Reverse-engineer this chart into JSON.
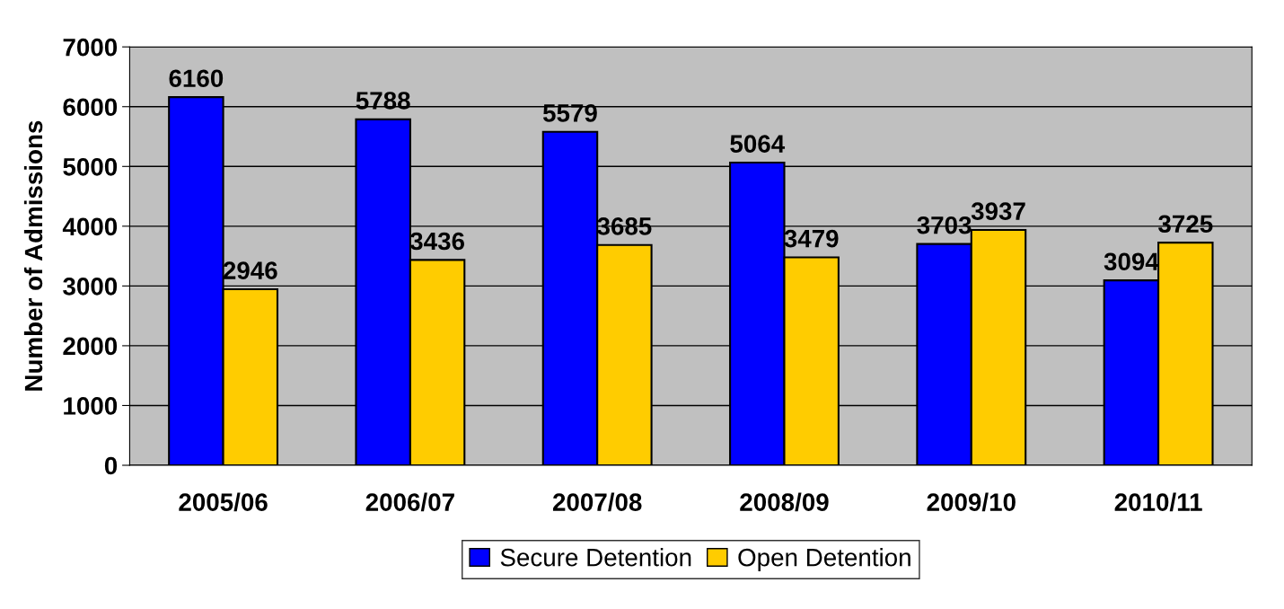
{
  "chart_data": {
    "type": "bar",
    "ylabel": "Number of Admissions",
    "categories": [
      "2005/06",
      "2006/07",
      "2007/08",
      "2008/09",
      "2009/10",
      "2010/11"
    ],
    "series": [
      {
        "name": "Secure Detention",
        "color": "#0000ff",
        "values": [
          6160,
          5788,
          5579,
          5064,
          3703,
          3094
        ]
      },
      {
        "name": "Open Detention",
        "color": "#ffcc00",
        "values": [
          2946,
          3436,
          3685,
          3479,
          3937,
          3725
        ]
      }
    ],
    "ylim": [
      0,
      7000
    ],
    "yticks": [
      0,
      1000,
      2000,
      3000,
      4000,
      5000,
      6000,
      7000
    ],
    "grid": "y",
    "legend": "bottom",
    "data_labels": true
  }
}
